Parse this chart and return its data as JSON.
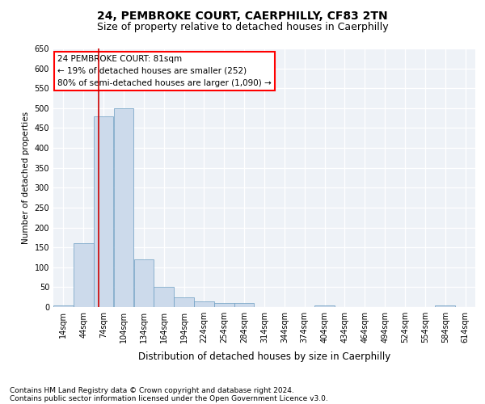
{
  "title": "24, PEMBROKE COURT, CAERPHILLY, CF83 2TN",
  "subtitle": "Size of property relative to detached houses in Caerphilly",
  "xlabel": "Distribution of detached houses by size in Caerphilly",
  "ylabel": "Number of detached properties",
  "footnote1": "Contains HM Land Registry data © Crown copyright and database right 2024.",
  "footnote2": "Contains public sector information licensed under the Open Government Licence v3.0.",
  "annotation_line1": "24 PEMBROKE COURT: 81sqm",
  "annotation_line2": "← 19% of detached houses are smaller (252)",
  "annotation_line3": "80% of semi-detached houses are larger (1,090) →",
  "bar_color": "#ccdaeb",
  "bar_edgecolor": "#6b9dc2",
  "redline_color": "#cc0000",
  "redline_x": 81,
  "ylim": [
    0,
    650
  ],
  "yticks": [
    0,
    50,
    100,
    150,
    200,
    250,
    300,
    350,
    400,
    450,
    500,
    550,
    600,
    650
  ],
  "bin_starts": [
    14,
    44,
    74,
    104,
    134,
    164,
    194,
    224,
    254,
    284,
    314,
    344,
    374,
    404,
    434,
    464,
    494,
    524,
    554,
    584,
    614
  ],
  "bar_heights": [
    5,
    160,
    480,
    500,
    120,
    50,
    25,
    15,
    10,
    10,
    0,
    0,
    0,
    5,
    0,
    0,
    0,
    0,
    0,
    5,
    0
  ],
  "bin_width": 30,
  "background_color": "#eef2f7",
  "grid_color": "#ffffff",
  "title_fontsize": 10,
  "subtitle_fontsize": 9,
  "annot_fontsize": 7.5,
  "tick_fontsize": 7,
  "ylabel_fontsize": 7.5,
  "xlabel_fontsize": 8.5,
  "footnote_fontsize": 6.5
}
